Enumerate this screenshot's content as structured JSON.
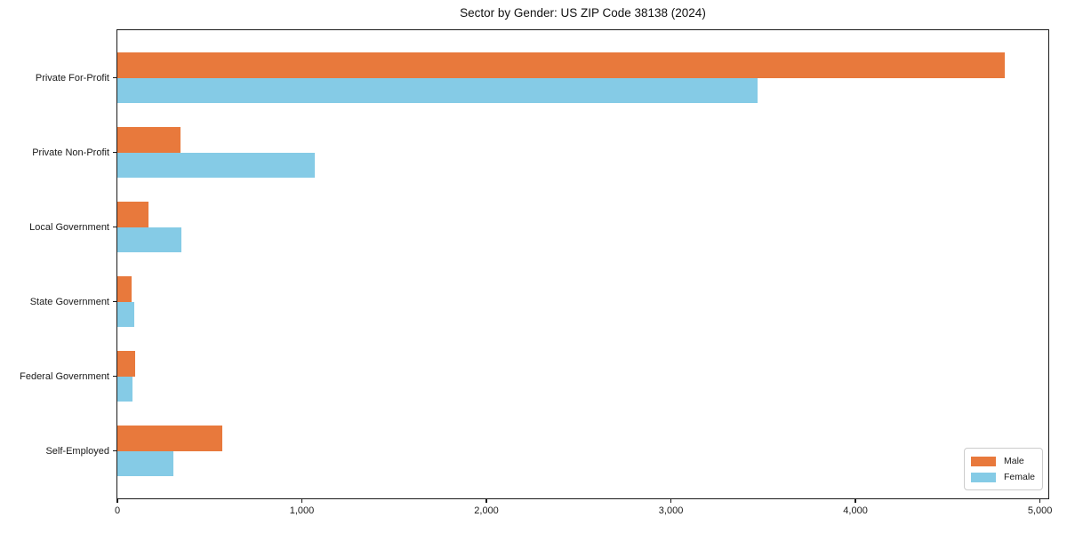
{
  "figure": {
    "background": "#ffffff",
    "frame_color": "#1a1a1a"
  },
  "chart_data": {
    "type": "bar",
    "orientation": "horizontal",
    "title": "Sector by Gender: US ZIP Code 38138 (2024)",
    "xlabel": "",
    "ylabel": "",
    "categories": [
      "Private For-Profit",
      "Private Non-Profit",
      "Local Government",
      "State Government",
      "Federal Government",
      "Self-Employed"
    ],
    "series": [
      {
        "name": "Male",
        "color": "#E8793C",
        "values": [
          4810,
          340,
          170,
          75,
          95,
          570
        ]
      },
      {
        "name": "Female",
        "color": "#85CBE6",
        "values": [
          3470,
          1070,
          345,
          90,
          80,
          305
        ]
      }
    ],
    "xlim": [
      0,
      5055
    ],
    "xticks": [
      0,
      1000,
      2000,
      3000,
      4000,
      5000
    ],
    "xtick_labels": [
      "0",
      "1,000",
      "2,000",
      "3,000",
      "4,000",
      "5,000"
    ],
    "grid": false,
    "legend": {
      "position": "lower right"
    }
  }
}
